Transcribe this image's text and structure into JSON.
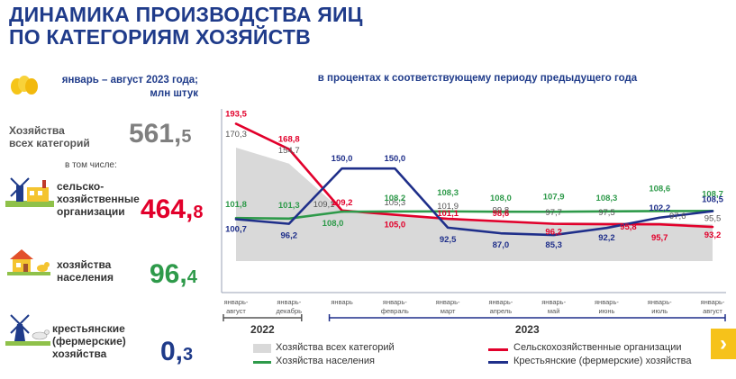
{
  "header": {
    "title_line1": "ДИНАМИКА ПРОИЗВОДСТВА ЯИЦ",
    "title_line2": "ПО КАТЕГОРИЯМ ХОЗЯЙСТВ"
  },
  "summary": {
    "period_line1": "январь – август 2023 года;",
    "period_line2": "млн штук",
    "all_label_line1": "Хозяйства",
    "all_label_line2": "всех категорий",
    "all_int": "561,",
    "all_dec": "5",
    "including": "в том числе:",
    "agri_line1": "сельско-",
    "agri_line2": "хозяйственные",
    "agri_line3": "организации",
    "agri_int": "464,",
    "agri_dec": "8",
    "house_line1": "хозяйства",
    "house_line2": "населения",
    "house_int": "96,",
    "house_dec": "4",
    "farm_line1": "крестьянские",
    "farm_line2": "(фермерские)",
    "farm_line3": "хозяйства",
    "farm_int": "0,",
    "farm_dec": "3"
  },
  "subtitle": "в процентах к соответствующему периоду предыдущего года",
  "colors": {
    "title": "#1f3b8a",
    "all": "#7f7f7f",
    "agri": "#e2002b",
    "house": "#2e9a4a",
    "farm": "#1f2f8a",
    "area": "#d9d9d9",
    "accent": "#f6c21a"
  },
  "nav": {
    "next_icon": "chevron-right-icon"
  },
  "chart_data": {
    "type": "line",
    "categories": [
      [
        "январь-",
        "август"
      ],
      [
        "январь-",
        "декабрь"
      ],
      [
        "январь"
      ],
      [
        "январь-",
        "февраль"
      ],
      [
        "январь-",
        "март"
      ],
      [
        "январь-",
        "апрель"
      ],
      [
        "январь-",
        "май"
      ],
      [
        "январь-",
        "июнь"
      ],
      [
        "январь-",
        "июль"
      ],
      [
        "январь-",
        "август"
      ]
    ],
    "year_groups": [
      {
        "label": "2022",
        "from": 0,
        "to": 1
      },
      {
        "label": "2023",
        "from": 2,
        "to": 9
      }
    ],
    "series": [
      {
        "name": "Хозяйства всех категорий",
        "type": "area",
        "values": [
          170.3,
          154.7,
          109.1,
          105.3,
          101.9,
          99.8,
          97.7,
          97.5,
          97.6,
          95.5
        ]
      },
      {
        "name": "Сельскохозяйственные организации",
        "type": "line",
        "values": [
          193.5,
          168.8,
          109.2,
          105.0,
          101.1,
          98.6,
          96.2,
          95.8,
          95.7,
          93.2
        ]
      },
      {
        "name": "Хозяйства населения",
        "type": "line",
        "values": [
          101.8,
          101.3,
          108.0,
          108.2,
          108.3,
          108.0,
          107.9,
          108.3,
          108.6,
          108.7
        ]
      },
      {
        "name": "Крестьянские (фермерские) хозяйства",
        "type": "line",
        "values": [
          100.7,
          96.2,
          150.0,
          150.0,
          92.5,
          87.0,
          85.3,
          92.2,
          102.2,
          108.5
        ]
      }
    ],
    "labels": {
      "all": [
        "170,3",
        "154,7",
        "109,1",
        "105,3",
        "101,9",
        "99,8",
        "97,7",
        "97,5",
        "97,6",
        "95,5"
      ],
      "agri": [
        "193,5",
        "168,8",
        "109,2",
        "105,0",
        "101,1",
        "98,6",
        "96,2",
        "95,8",
        "95,7",
        "93,2"
      ],
      "house": [
        "101,8",
        "101,3",
        "108,0",
        "108,2",
        "108,3",
        "108,0",
        "107,9",
        "108,3",
        "108,6",
        "108,7"
      ],
      "farm": [
        "100,7",
        "96,2",
        "150,0",
        "150,0",
        "92,5",
        "87,0",
        "85,3",
        "92,2",
        "102,2",
        "108,5"
      ]
    },
    "ylim": [
      60,
      200
    ],
    "legend_position": "bottom"
  }
}
